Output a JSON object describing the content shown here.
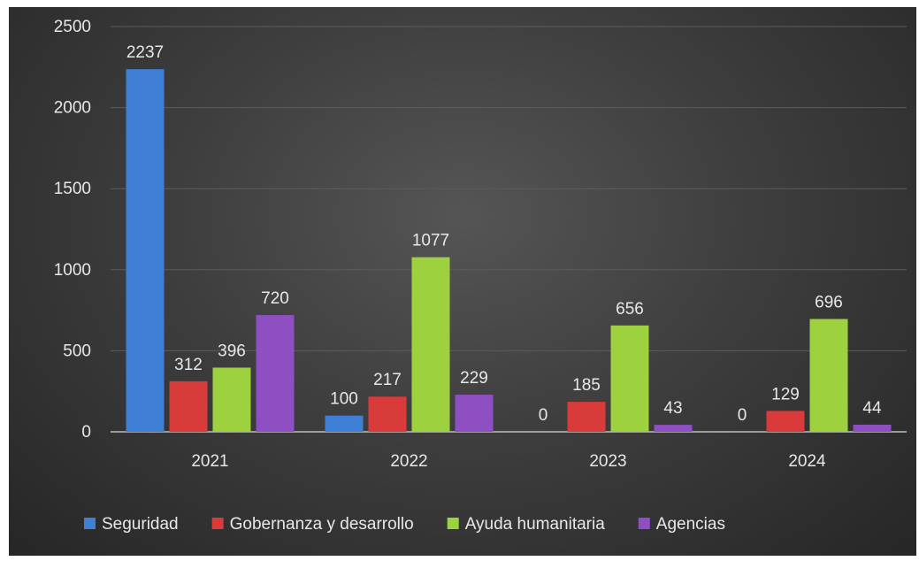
{
  "chart_data": {
    "type": "bar",
    "title": "",
    "xlabel": "",
    "ylabel": "",
    "categories": [
      "2021",
      "2022",
      "2023",
      "2024"
    ],
    "ylim": [
      0,
      2500
    ],
    "yticks": [
      0,
      500,
      1000,
      1500,
      2000,
      2500
    ],
    "grid": true,
    "legend_position": "bottom",
    "series": [
      {
        "name": "Seguridad",
        "color": "#3f7fd6",
        "values": [
          2237,
          100,
          0,
          0
        ]
      },
      {
        "name": "Gobernanza y desarrollo",
        "color": "#d93a3a",
        "values": [
          312,
          217,
          185,
          129
        ]
      },
      {
        "name": "Ayuda humanitaria",
        "color": "#9dd23e",
        "values": [
          396,
          1077,
          656,
          696
        ]
      },
      {
        "name": "Agencias",
        "color": "#8e4fc2",
        "values": [
          720,
          229,
          43,
          44
        ]
      }
    ]
  }
}
